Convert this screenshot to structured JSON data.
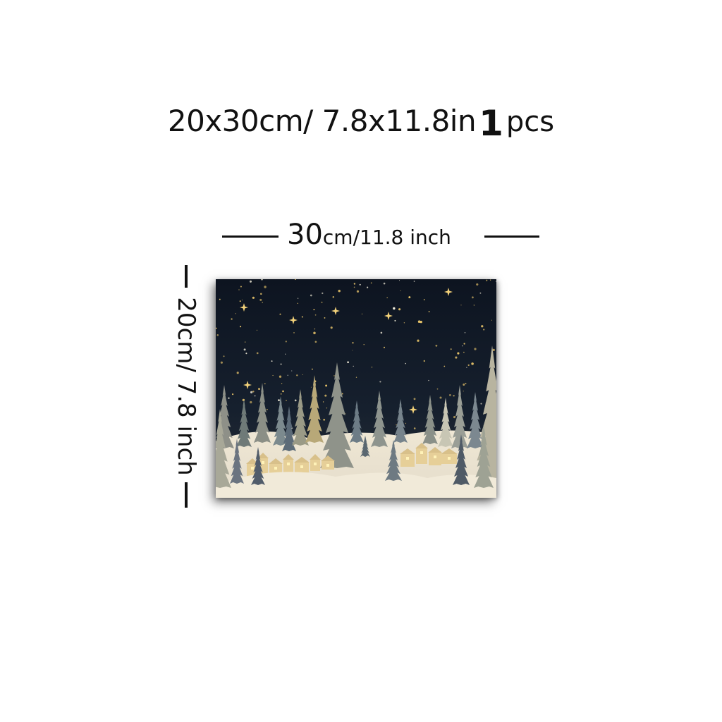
{
  "header": {
    "size_text": "20x30cm/ 7.8x11.8in",
    "quantity": "1",
    "unit": "pcs"
  },
  "width_dimension": {
    "value": "30",
    "unit": "cm/11.8 inch"
  },
  "height_dimension": {
    "text": "20cm/ 7.8 inch"
  },
  "colors": {
    "sky": "#101826",
    "snow": "#efe8d8",
    "gold": "#e8c46a"
  }
}
